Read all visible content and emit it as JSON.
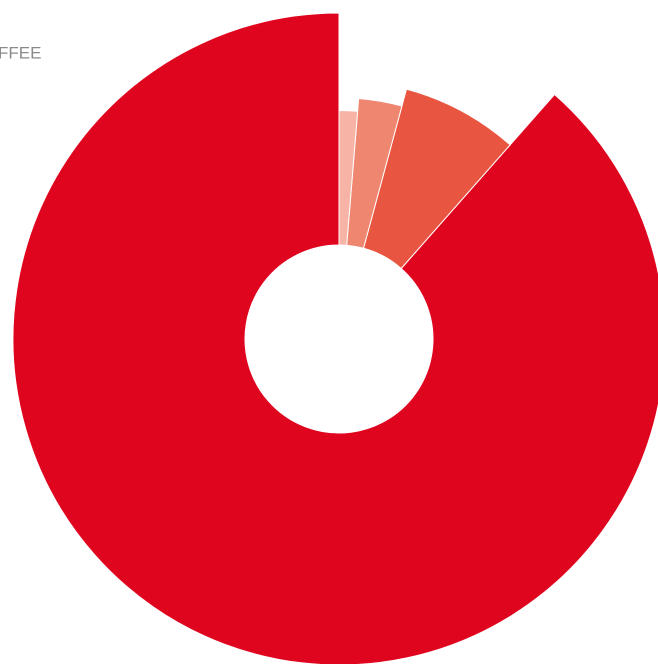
{
  "chart_data": {
    "type": "pie",
    "title": "FFEE",
    "values": [
      1.3,
      2.9,
      7.3,
      88.5
    ],
    "colors": [
      "#f6b3a6",
      "#ef8670",
      "#e85540",
      "#e0051f"
    ]
  }
}
